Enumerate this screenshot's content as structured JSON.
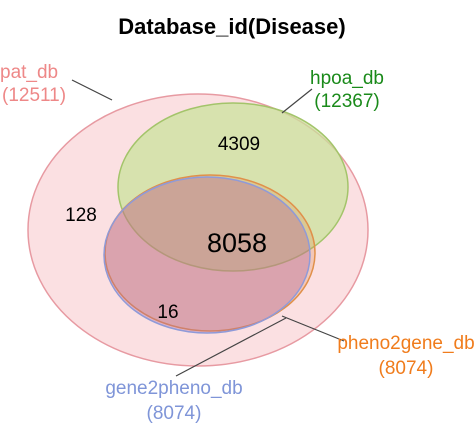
{
  "title": "Database_id(Disease)",
  "sets": {
    "pat_db": {
      "name": "pat_db",
      "size": "(12511)",
      "color": "#ee8888"
    },
    "hpoa_db": {
      "name": "hpoa_db",
      "size": "(12367)",
      "color": "#1a8a1a"
    },
    "pheno2gene_db": {
      "name": "pheno2gene_db",
      "size": "(8074)",
      "color": "#f07c1c"
    },
    "gene2pheno_db": {
      "name": "gene2pheno_db",
      "size": "(8074)",
      "color": "#7f95d8"
    }
  },
  "regions": {
    "pat_only": "128",
    "pat_hpoa": "4309",
    "all_four": "8058",
    "pat_gene2pheno_pheno2gene": "16"
  }
}
